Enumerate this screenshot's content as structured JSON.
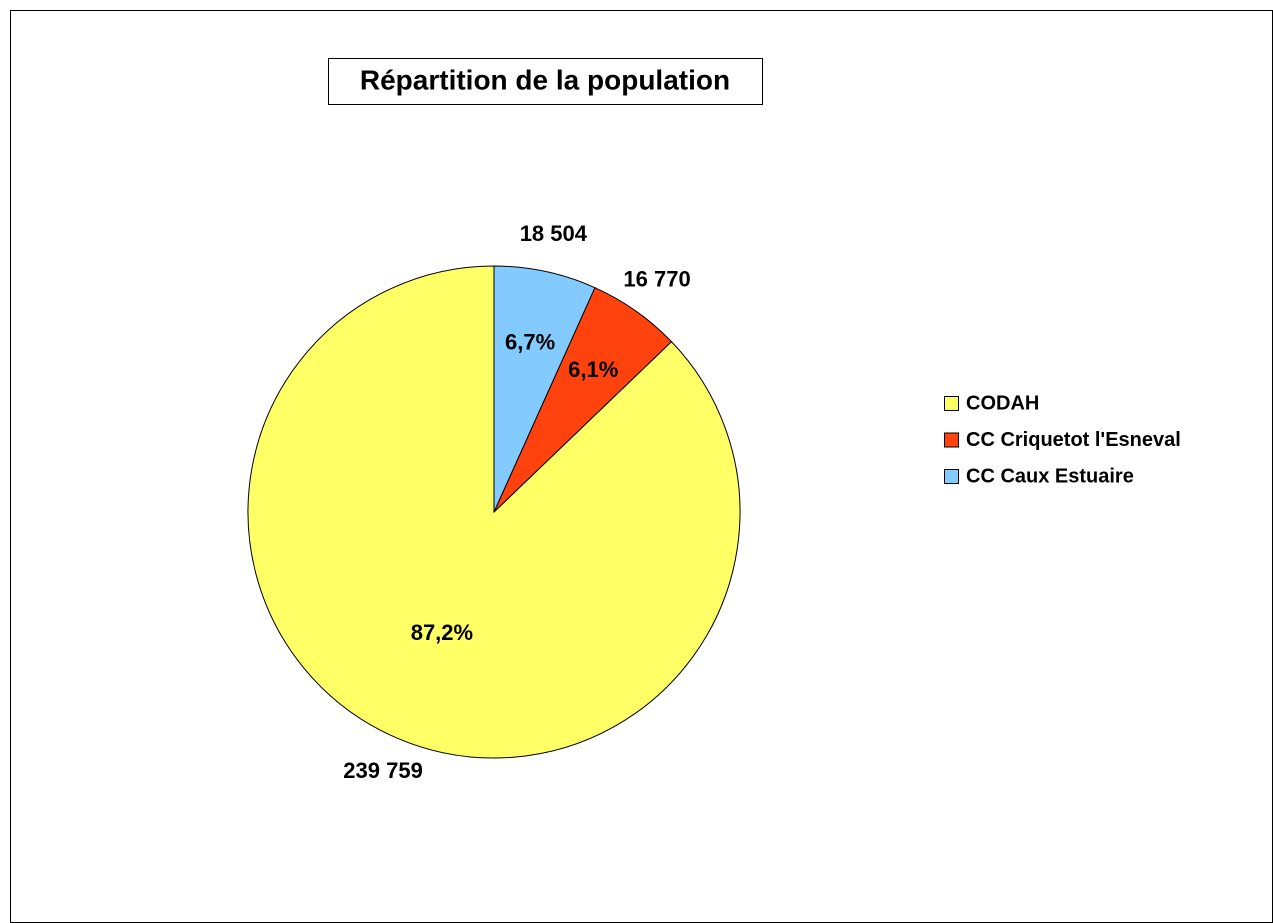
{
  "chart_data": {
    "type": "pie",
    "title": "Répartition de la population",
    "categories": [
      "CODAH",
      "CC Criquetot l'Esneval",
      "CC Caux Estuaire"
    ],
    "values": [
      239759,
      16770,
      18504
    ],
    "value_labels": [
      "239 759",
      "16 770",
      "18 504"
    ],
    "percent_labels": [
      "87,2%",
      "6,1%",
      "6,7%"
    ],
    "colors": [
      "#ffff66",
      "#ff420e",
      "#83caff"
    ],
    "legend": "right"
  }
}
